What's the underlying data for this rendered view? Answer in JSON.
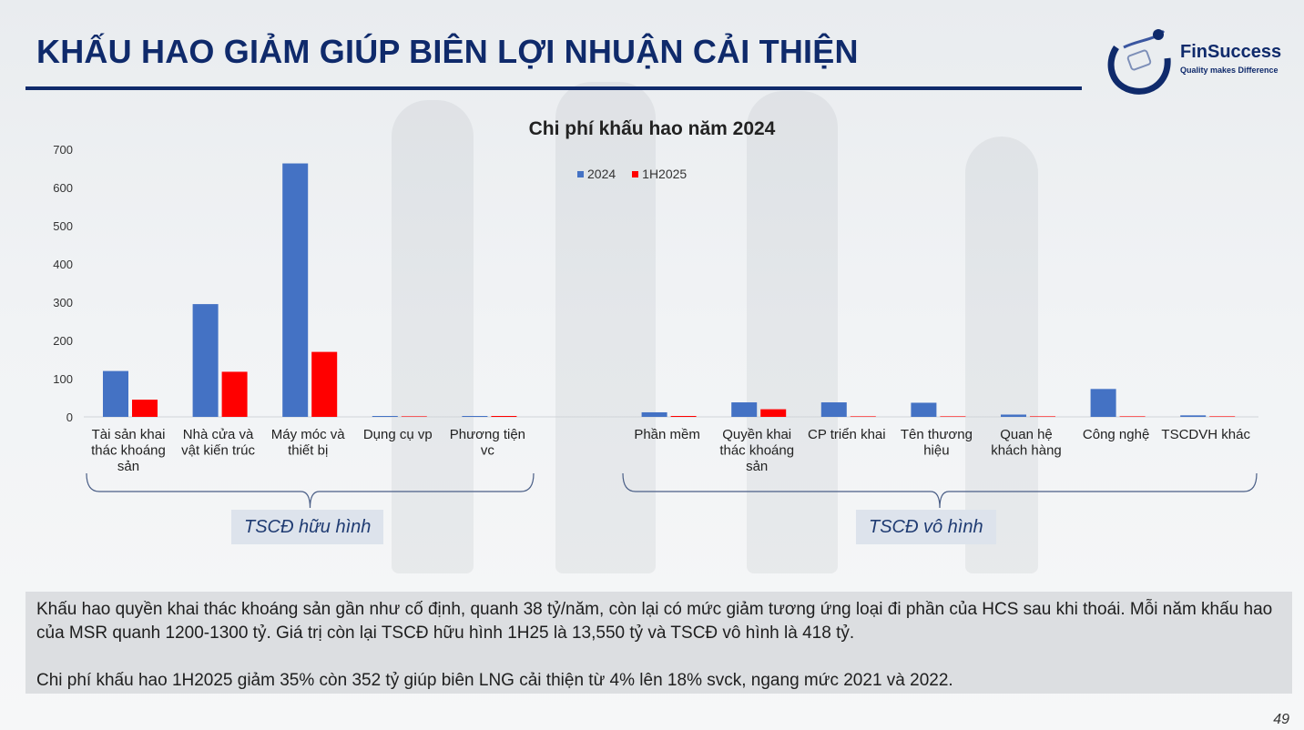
{
  "slide": {
    "title": "KHẤU HAO GIẢM GIÚP BIÊN LỢI NHUẬN CẢI THIỆN",
    "page_number": "49"
  },
  "logo": {
    "brand": "FinSuccess",
    "tagline": "Quality makes Difference"
  },
  "chart_data": {
    "type": "bar",
    "title": "Chi phí khấu hao năm 2024",
    "xlabel": "",
    "ylabel": "",
    "ylim": [
      0,
      700
    ],
    "yticks": [
      0,
      100,
      200,
      300,
      400,
      500,
      600,
      700
    ],
    "legend_position": "top-center",
    "grid": false,
    "categories": [
      [
        "Tài sản khai",
        "thác khoáng",
        "sản"
      ],
      [
        "Nhà cửa và",
        "vật kiến trúc"
      ],
      [
        "Máy móc và",
        "thiết bị"
      ],
      [
        "Dụng cụ vp"
      ],
      [
        "Phương tiện",
        "vc"
      ],
      [],
      [
        "Phần mềm"
      ],
      [
        "Quyền khai",
        "thác khoáng",
        "sản"
      ],
      [
        "CP triển khai"
      ],
      [
        "Tên thương",
        "hiệu"
      ],
      [
        "Quan hệ",
        "khách hàng"
      ],
      [
        "Công nghệ"
      ],
      [
        "TSCDVH khác"
      ]
    ],
    "series": [
      {
        "name": "2024",
        "color": "#4472c4",
        "values": [
          120,
          295,
          663,
          1,
          2,
          null,
          12,
          38,
          38,
          37,
          6,
          73,
          4
        ]
      },
      {
        "name": "1H2025",
        "color": "#ff0000",
        "values": [
          45,
          118,
          170,
          0,
          2,
          null,
          2,
          20,
          0,
          0,
          0,
          0,
          0
        ]
      }
    ],
    "groups": [
      {
        "label": "TSCĐ hữu hình"
      },
      {
        "label": "TSCĐ vô hình"
      }
    ]
  },
  "notes": {
    "paragraph_1": "Khấu hao quyền khai thác khoáng sản gần như cố định, quanh 38 tỷ/năm, còn lại có mức giảm tương ứng loại đi phần của HCS sau khi thoái. Mỗi năm khấu hao của MSR quanh 1200-1300 tỷ. Giá trị còn lại TSCĐ hữu hình 1H25 là 13,550 tỷ và TSCĐ vô hình là 418 tỷ.",
    "paragraph_2": "Chi phí khấu hao 1H2025 giảm 35% còn 352 tỷ giúp biên LNG cải thiện từ 4% lên 18% svck, ngang mức 2021 và 2022."
  }
}
